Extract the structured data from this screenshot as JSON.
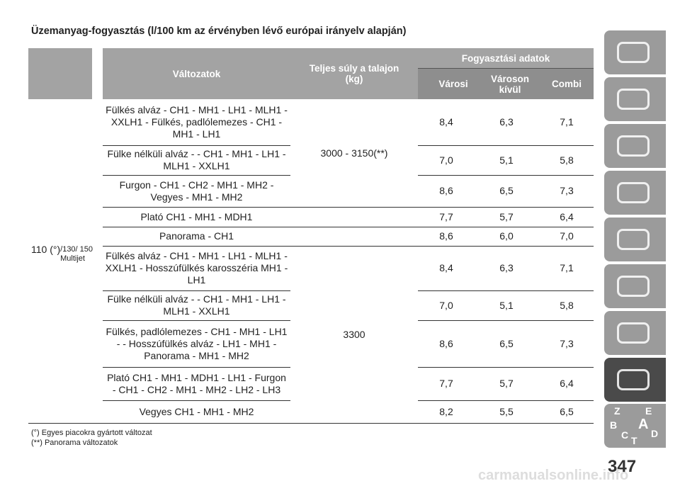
{
  "title": "Üzemanyag-fogyasztás (l/100 km az érvényben lévő európai irányelv alapján)",
  "table": {
    "header": {
      "versions": "Változatok",
      "weight": "Teljes súly a talajon (kg)",
      "consumption": "Fogyasztási adatok",
      "urban": "Városi",
      "extra_urban": "Városon kívül",
      "combined": "Combi"
    },
    "engine": {
      "main": "110 (°)",
      "sub": "/130/ 150 Multijet"
    },
    "weights": [
      "3000 - 3150(**)",
      "3300"
    ],
    "rows": [
      [
        "Fülkés alváz - CH1 - MH1 - LH1 - MLH1 - XXLH1 - Fülkés, padlólemezes - CH1 - MH1 - LH1",
        "8,4",
        "6,3",
        "7,1"
      ],
      [
        "Fülke nélküli alváz - - CH1 - MH1 - LH1 - MLH1 - XXLH1",
        "7,0",
        "5,1",
        "5,8"
      ],
      [
        "Furgon - CH1 - CH2 - MH1 - MH2 - Vegyes - MH1 - MH2",
        "8,6",
        "6,5",
        "7,3"
      ],
      [
        "Plató CH1 - MH1 - MDH1",
        "7,7",
        "5,7",
        "6,4"
      ],
      [
        "Panorama - CH1",
        "8,6",
        "6,0",
        "7,0"
      ],
      [
        "Fülkés alváz - CH1 - MH1 - LH1 - MLH1 - XXLH1 - Hosszúfülkés karosszéria MH1 - LH1",
        "8,4",
        "6,3",
        "7,1"
      ],
      [
        "Fülke nélküli alváz - - CH1 - MH1 - LH1 - MLH1 - XXLH1",
        "7,0",
        "5,1",
        "5,8"
      ],
      [
        "Fülkés, padlólemezes - CH1 - MH1 - LH1 - - Hosszúfülkés alváz - LH1 - MH1 - Panorama - MH1 - MH2",
        "8,6",
        "6,5",
        "7,3"
      ],
      [
        "Plató CH1 - MH1 - MDH1 - LH1 - Furgon - CH1 - CH2 - MH1 - MH2 - LH2 - LH3",
        "7,7",
        "5,7",
        "6,4"
      ],
      [
        "Vegyes CH1 - MH1 - MH2",
        "8,2",
        "5,5",
        "6,5"
      ]
    ]
  },
  "footnotes": [
    "(°) Egyes piacokra gyártott változat",
    "(**) Panorama változatok"
  ],
  "page_number": "347",
  "watermark": "carmanualsonline.info",
  "sidebar_letters": [
    "Z",
    "E",
    "B",
    "A",
    "C",
    "D",
    "T"
  ]
}
